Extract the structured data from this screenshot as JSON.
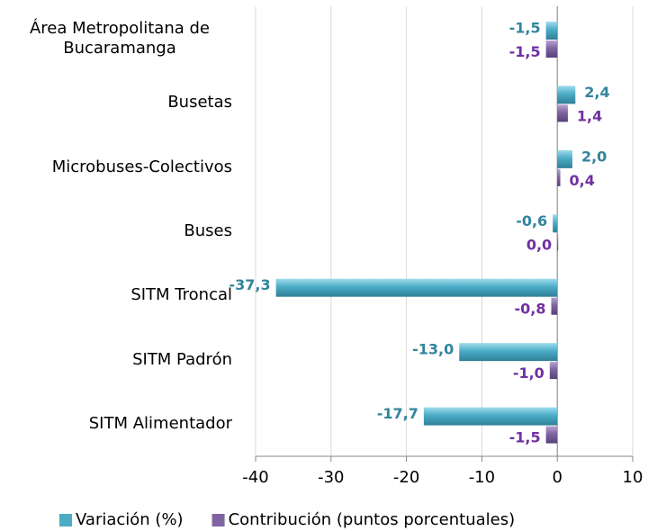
{
  "chart_data": {
    "type": "bar",
    "orientation": "horizontal",
    "categories": [
      "Área Metropolitana de Bucaramanga",
      "Busetas",
      "Microbuses-Colectivos",
      "Buses",
      "SITM Troncal",
      "SITM Padrón",
      "SITM Alimentador"
    ],
    "series": [
      {
        "name": "Variación (%)",
        "color": "#4bacc6",
        "label_color": "#31859c",
        "values": [
          -1.5,
          2.4,
          2.0,
          -0.6,
          -37.3,
          -13.0,
          -17.7
        ],
        "value_labels": [
          "-1,5",
          "2,4",
          "2,0",
          "-0,6",
          "-37,3",
          "-13,0",
          "-17,7"
        ]
      },
      {
        "name": "Contribución (puntos porcentuales)",
        "color": "#8064a2",
        "label_color": "#7030a0",
        "values": [
          -1.5,
          1.4,
          0.4,
          0.0,
          -0.8,
          -1.0,
          -1.5
        ],
        "value_labels": [
          "-1,5",
          "1,4",
          "0,4",
          "0,0",
          "-0,8",
          "-1,0",
          "-1,5"
        ]
      }
    ],
    "xlim": [
      -40,
      10
    ],
    "xticks": [
      -40,
      -30,
      -20,
      -10,
      0,
      10
    ],
    "grid": true,
    "legend": "bottom"
  }
}
